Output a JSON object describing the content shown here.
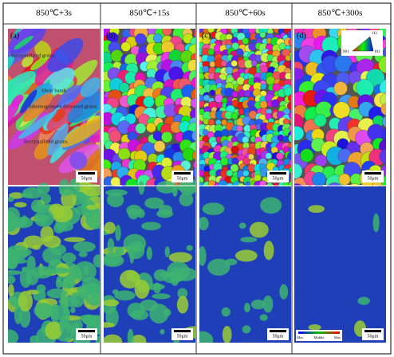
{
  "header": {
    "columns": [
      "850℃+3s",
      "850℃+15s",
      "850℃+60s",
      "850℃+300s"
    ]
  },
  "panels": [
    {
      "label": "(a)",
      "ipf_scale_bar": "50μm",
      "kam_scale_bar": "50μm"
    },
    {
      "label": "(b)",
      "ipf_scale_bar": "50μm",
      "kam_scale_bar": "50μm"
    },
    {
      "label": "(c)",
      "ipf_scale_bar": "50μm",
      "kam_scale_bar": "50μm"
    },
    {
      "label": "(d)",
      "ipf_scale_bar": "50μm",
      "kam_scale_bar": "50μm"
    }
  ],
  "annotations": [
    "Recrystallized grains",
    "Shear bands",
    "Inhomogeneous deformed grains",
    "Recrystallized grains"
  ],
  "ipf_legend": {
    "labels": [
      "111",
      "001",
      "101"
    ]
  },
  "kam_legend": {
    "labels": [
      "Min",
      "Middle",
      "Max"
    ]
  }
}
